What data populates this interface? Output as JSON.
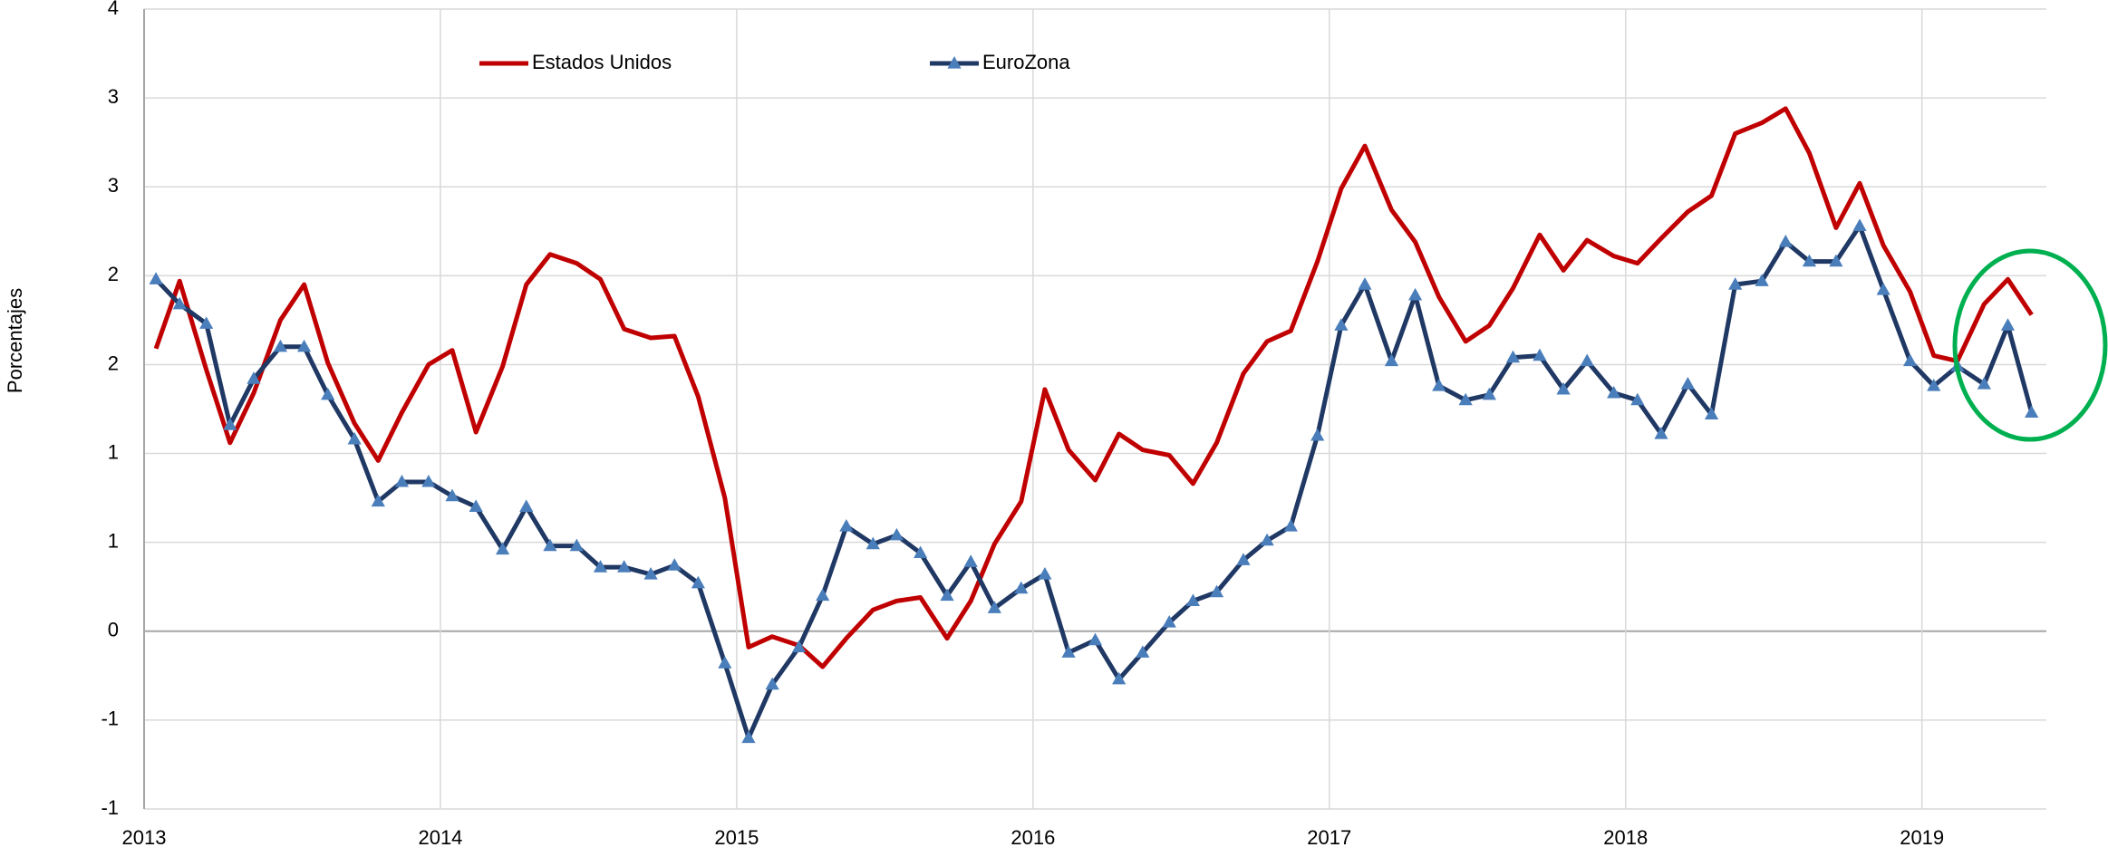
{
  "chart_data": {
    "type": "line",
    "y_label": "Porcentajes",
    "x": [
      2013.04,
      2013.12,
      2013.21,
      2013.29,
      2013.37,
      2013.46,
      2013.54,
      2013.62,
      2013.71,
      2013.79,
      2013.87,
      2013.96,
      2014.04,
      2014.12,
      2014.21,
      2014.29,
      2014.37,
      2014.46,
      2014.54,
      2014.62,
      2014.71,
      2014.79,
      2014.87,
      2014.96,
      2015.04,
      2015.12,
      2015.21,
      2015.29,
      2015.37,
      2015.46,
      2015.54,
      2015.62,
      2015.71,
      2015.79,
      2015.87,
      2015.96,
      2016.04,
      2016.12,
      2016.21,
      2016.29,
      2016.37,
      2016.46,
      2016.54,
      2016.62,
      2016.71,
      2016.79,
      2016.87,
      2016.96,
      2017.04,
      2017.12,
      2017.21,
      2017.29,
      2017.37,
      2017.46,
      2017.54,
      2017.62,
      2017.71,
      2017.79,
      2017.87,
      2017.96,
      2018.04,
      2018.12,
      2018.21,
      2018.29,
      2018.37,
      2018.46,
      2018.54,
      2018.62,
      2018.71,
      2018.79,
      2018.87,
      2018.96,
      2019.04,
      2019.12,
      2019.21,
      2019.29,
      2019.37
    ],
    "series": [
      {
        "name": "Estados Unidos",
        "color": "#c00000",
        "values": [
          1.59,
          1.97,
          1.47,
          1.06,
          1.34,
          1.75,
          1.95,
          1.51,
          1.17,
          0.96,
          1.23,
          1.5,
          1.58,
          1.12,
          1.49,
          1.95,
          2.12,
          2.07,
          1.98,
          1.7,
          1.65,
          1.66,
          1.32,
          0.75,
          -0.09,
          -0.03,
          -0.08,
          -0.2,
          -0.04,
          0.12,
          0.17,
          0.19,
          -0.04,
          0.17,
          0.49,
          0.73,
          1.36,
          1.02,
          0.85,
          1.11,
          1.02,
          0.99,
          0.83,
          1.06,
          1.45,
          1.63,
          1.69,
          2.08,
          2.49,
          2.73,
          2.37,
          2.19,
          1.88,
          1.63,
          1.72,
          1.93,
          2.23,
          2.03,
          2.2,
          2.11,
          2.07,
          2.21,
          2.36,
          2.45,
          2.8,
          2.86,
          2.94,
          2.69,
          2.27,
          2.52,
          2.17,
          1.91,
          1.55,
          1.52,
          1.84,
          1.98,
          1.78
        ]
      },
      {
        "name": "EuroZona",
        "color": "#1f3864",
        "marker_color": "#4a7ebb",
        "values": [
          1.98,
          1.84,
          1.73,
          1.16,
          1.42,
          1.6,
          1.6,
          1.33,
          1.08,
          0.73,
          0.84,
          0.84,
          0.76,
          0.7,
          0.46,
          0.7,
          0.48,
          0.48,
          0.36,
          0.36,
          0.32,
          0.37,
          0.27,
          -0.18,
          -0.6,
          -0.3,
          -0.09,
          0.2,
          0.59,
          0.49,
          0.54,
          0.44,
          0.2,
          0.39,
          0.13,
          0.24,
          0.32,
          -0.12,
          -0.05,
          -0.27,
          -0.12,
          0.05,
          0.17,
          0.22,
          0.4,
          0.51,
          0.59,
          1.1,
          1.72,
          1.95,
          1.52,
          1.89,
          1.38,
          1.3,
          1.33,
          1.54,
          1.55,
          1.36,
          1.52,
          1.34,
          1.3,
          1.11,
          1.39,
          1.22,
          1.95,
          1.97,
          2.19,
          2.08,
          2.08,
          2.28,
          1.92,
          1.52,
          1.38,
          1.49,
          1.39,
          1.72,
          1.23
        ]
      }
    ],
    "xlim": [
      2013,
      2019.42
    ],
    "xticks": [
      2013,
      2014,
      2015,
      2016,
      2017,
      2018,
      2019
    ],
    "ylim": [
      -1,
      3.5
    ],
    "yticks": [
      {
        "value": 3.5,
        "label": "4"
      },
      3,
      {
        "value": 2.5,
        "label": "3"
      },
      2,
      {
        "value": 1.5,
        "label": "2"
      },
      1,
      {
        "value": 0.5,
        "label": "1"
      },
      0,
      {
        "value": -0.5,
        "label": "-1"
      },
      -1
    ],
    "grid": true
  }
}
